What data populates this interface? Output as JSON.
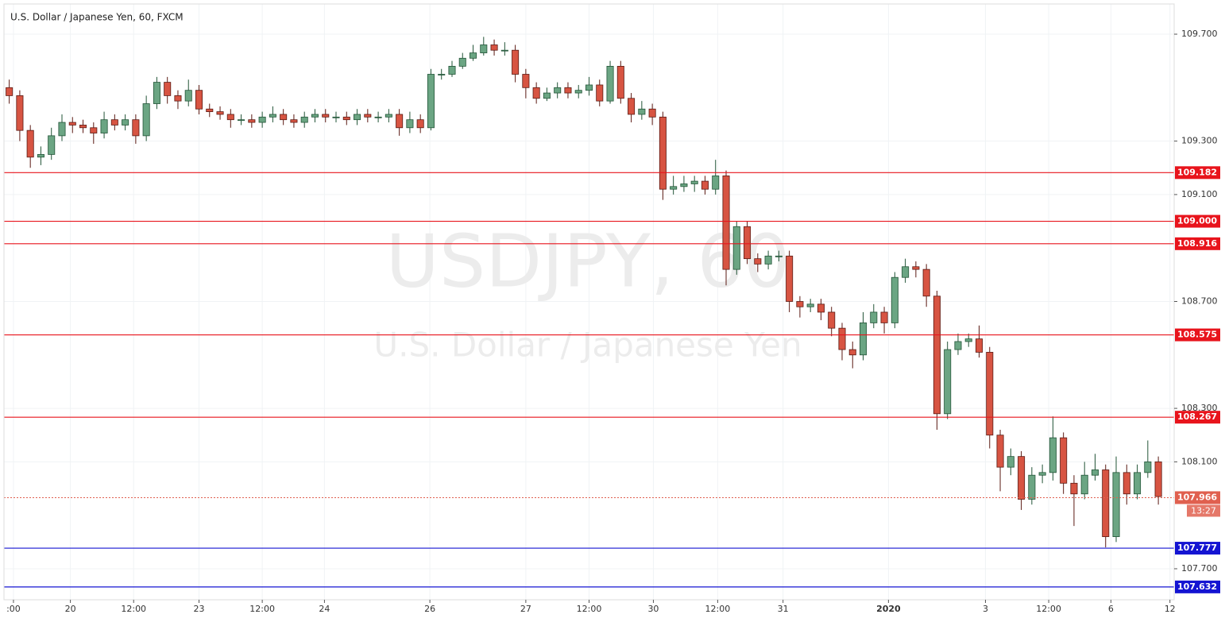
{
  "chart_data": {
    "type": "candlestick",
    "title": "U.S. Dollar / Japanese Yen, 60, FXCM",
    "watermark": "USDJPY, 60",
    "watermark_subtitle": "U.S. Dollar / Japanese Yen",
    "countdown": "13:27",
    "up_color": "#6ba583",
    "down_color": "#d75442",
    "xlim": [
      -0.5,
      110.5
    ],
    "xticks": [
      {
        "value": 0.4,
        "label": ":00"
      },
      {
        "value": 5.8,
        "label": "20"
      },
      {
        "value": 11.8,
        "label": "12:00"
      },
      {
        "value": 18.0,
        "label": "23"
      },
      {
        "value": 24.0,
        "label": "12:00"
      },
      {
        "value": 29.9,
        "label": "24"
      },
      {
        "value": 39.9,
        "label": "26"
      },
      {
        "value": 49.0,
        "label": "27"
      },
      {
        "value": 55.0,
        "label": "12:00"
      },
      {
        "value": 61.1,
        "label": "30"
      },
      {
        "value": 67.2,
        "label": "12:00"
      },
      {
        "value": 73.4,
        "label": "31"
      },
      {
        "value": 83.4,
        "label": "2020"
      },
      {
        "value": 92.6,
        "label": "3"
      },
      {
        "value": 98.6,
        "label": "12:00"
      },
      {
        "value": 104.5,
        "label": "6"
      },
      {
        "value": 110.1,
        "label": "12"
      }
    ],
    "ylim": [
      107.584,
      109.813
    ],
    "yticks": [
      {
        "value": 107.7,
        "label": "107.700"
      },
      {
        "value": 108.1,
        "label": "108.100"
      },
      {
        "value": 108.3,
        "label": "108.300"
      },
      {
        "value": 108.7,
        "label": "108.700"
      },
      {
        "value": 109.1,
        "label": "109.100"
      },
      {
        "value": 109.3,
        "label": "109.300"
      },
      {
        "value": 109.7,
        "label": "109.700"
      }
    ],
    "grid": true,
    "open": [
      109.5,
      109.47,
      109.34,
      109.24,
      109.25,
      109.32,
      109.37,
      109.36,
      109.35,
      109.33,
      109.38,
      109.36,
      109.38,
      109.32,
      109.44,
      109.52,
      109.47,
      109.45,
      109.49,
      109.42,
      109.41,
      109.4,
      109.38,
      109.38,
      109.37,
      109.39,
      109.4,
      109.38,
      109.37,
      109.39,
      109.4,
      109.39,
      109.39,
      109.38,
      109.4,
      109.39,
      109.39,
      109.4,
      109.35,
      109.38,
      109.35,
      109.55,
      109.55,
      109.58,
      109.61,
      109.63,
      109.66,
      109.64,
      109.64,
      109.55,
      109.5,
      109.46,
      109.48,
      109.5,
      109.48,
      109.49,
      109.51,
      109.45,
      109.58,
      109.46,
      109.4,
      109.42,
      109.39,
      109.12,
      109.13,
      109.14,
      109.15,
      109.12,
      109.17,
      108.82,
      108.98,
      108.86,
      108.84,
      108.87,
      108.87,
      108.7,
      108.68,
      108.69,
      108.66,
      108.6,
      108.52,
      108.5,
      108.62,
      108.66,
      108.62,
      108.79,
      108.83,
      108.82,
      108.72,
      108.28,
      108.52,
      108.55,
      108.56,
      108.51,
      108.2,
      108.08,
      108.12,
      107.96,
      108.05,
      108.06,
      108.19,
      108.02,
      107.98,
      108.05,
      108.07,
      107.82,
      108.06,
      107.98,
      108.06,
      108.1
    ],
    "high": [
      109.53,
      109.49,
      109.36,
      109.28,
      109.35,
      109.4,
      109.39,
      109.38,
      109.37,
      109.41,
      109.4,
      109.4,
      109.4,
      109.47,
      109.54,
      109.54,
      109.49,
      109.53,
      109.51,
      109.44,
      109.43,
      109.42,
      109.4,
      109.4,
      109.41,
      109.43,
      109.42,
      109.4,
      109.41,
      109.42,
      109.42,
      109.41,
      109.41,
      109.42,
      109.42,
      109.41,
      109.42,
      109.42,
      109.41,
      109.4,
      109.57,
      109.57,
      109.6,
      109.63,
      109.66,
      109.69,
      109.68,
      109.67,
      109.66,
      109.57,
      109.52,
      109.5,
      109.52,
      109.52,
      109.51,
      109.54,
      109.53,
      109.6,
      109.6,
      109.48,
      109.45,
      109.44,
      109.41,
      109.17,
      109.17,
      109.17,
      109.17,
      109.23,
      109.19,
      109.0,
      109.0,
      108.88,
      108.89,
      108.89,
      108.89,
      108.72,
      108.71,
      108.71,
      108.68,
      108.62,
      108.55,
      108.66,
      108.69,
      108.68,
      108.81,
      108.86,
      108.85,
      108.84,
      108.74,
      108.55,
      108.58,
      108.58,
      108.61,
      108.53,
      108.22,
      108.15,
      108.14,
      108.08,
      108.09,
      108.27,
      108.21,
      108.05,
      108.1,
      108.13,
      108.09,
      108.12,
      108.09,
      108.09,
      108.18,
      108.12
    ],
    "low": [
      109.44,
      109.3,
      109.2,
      109.21,
      109.23,
      109.3,
      109.33,
      109.33,
      109.29,
      109.31,
      109.34,
      109.34,
      109.29,
      109.3,
      109.42,
      109.44,
      109.42,
      109.43,
      109.4,
      109.39,
      109.38,
      109.35,
      109.36,
      109.35,
      109.35,
      109.37,
      109.36,
      109.35,
      109.35,
      109.37,
      109.37,
      109.37,
      109.36,
      109.36,
      109.37,
      109.37,
      109.37,
      109.32,
      109.33,
      109.33,
      109.34,
      109.53,
      109.54,
      109.57,
      109.6,
      109.62,
      109.62,
      109.62,
      109.52,
      109.46,
      109.44,
      109.45,
      109.46,
      109.46,
      109.46,
      109.47,
      109.43,
      109.44,
      109.44,
      109.37,
      109.38,
      109.36,
      109.08,
      109.1,
      109.11,
      109.11,
      109.1,
      109.1,
      108.76,
      108.8,
      108.84,
      108.81,
      108.82,
      108.85,
      108.66,
      108.64,
      108.66,
      108.63,
      108.57,
      108.48,
      108.45,
      108.48,
      108.6,
      108.58,
      108.6,
      108.77,
      108.79,
      108.68,
      108.22,
      108.26,
      108.5,
      108.53,
      108.49,
      108.15,
      107.99,
      108.05,
      107.92,
      107.94,
      108.02,
      108.03,
      107.98,
      107.86,
      107.96,
      108.03,
      107.78,
      107.8,
      107.94,
      107.96,
      108.04,
      107.94
    ],
    "close": [
      109.47,
      109.34,
      109.24,
      109.25,
      109.32,
      109.37,
      109.36,
      109.35,
      109.33,
      109.38,
      109.36,
      109.38,
      109.32,
      109.44,
      109.52,
      109.47,
      109.45,
      109.49,
      109.42,
      109.41,
      109.4,
      109.38,
      109.38,
      109.37,
      109.39,
      109.4,
      109.38,
      109.37,
      109.39,
      109.4,
      109.39,
      109.39,
      109.38,
      109.4,
      109.39,
      109.39,
      109.4,
      109.35,
      109.38,
      109.35,
      109.55,
      109.55,
      109.58,
      109.61,
      109.63,
      109.66,
      109.64,
      109.64,
      109.55,
      109.5,
      109.46,
      109.48,
      109.5,
      109.48,
      109.49,
      109.51,
      109.45,
      109.58,
      109.46,
      109.4,
      109.42,
      109.39,
      109.12,
      109.13,
      109.14,
      109.15,
      109.12,
      109.17,
      108.82,
      108.98,
      108.86,
      108.84,
      108.87,
      108.87,
      108.7,
      108.68,
      108.69,
      108.66,
      108.6,
      108.52,
      108.5,
      108.62,
      108.66,
      108.62,
      108.79,
      108.83,
      108.82,
      108.72,
      108.28,
      108.52,
      108.55,
      108.56,
      108.51,
      108.2,
      108.08,
      108.12,
      107.96,
      108.05,
      108.06,
      108.19,
      108.02,
      107.98,
      108.05,
      108.07,
      107.82,
      108.06,
      107.98,
      108.06,
      108.1,
      107.97
    ],
    "levels": [
      {
        "value": 109.182,
        "color": "#e8141c"
      },
      {
        "value": 109,
        "label": "109.000",
        "color": "#e8141c"
      },
      {
        "value": 108.916,
        "color": "#e8141c"
      },
      {
        "value": 108.575,
        "color": "#e8141c"
      },
      {
        "value": 108.267,
        "color": "#e8141c"
      },
      {
        "value": 107.777,
        "color": "#1414d2"
      },
      {
        "value": 107.632,
        "color": "#1414d2"
      }
    ],
    "last_price": 107.966,
    "last_price_color": "#e0604f"
  }
}
